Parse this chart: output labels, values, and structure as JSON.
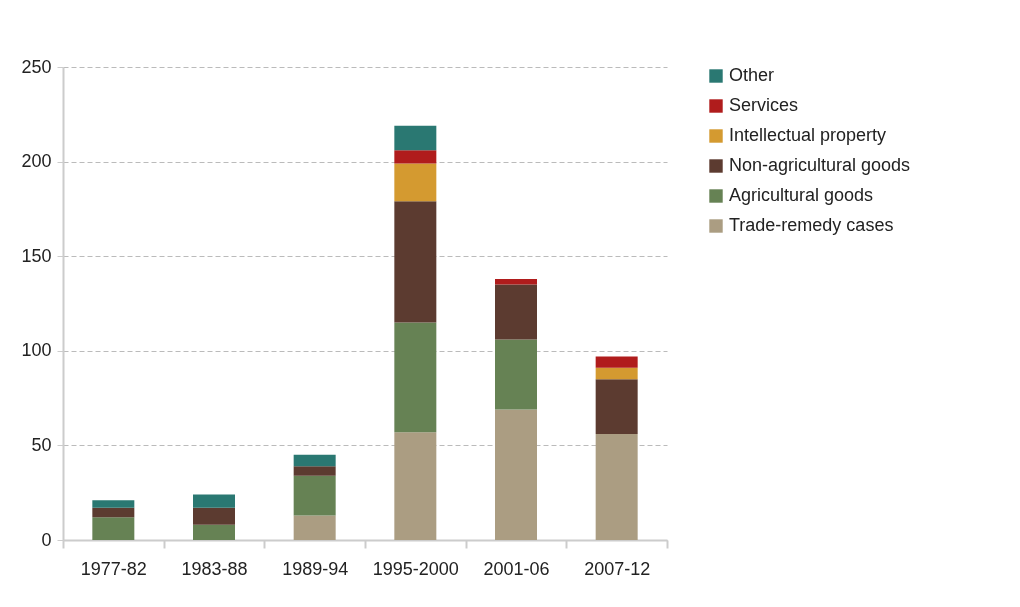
{
  "chart_data": {
    "type": "bar",
    "stacked": true,
    "categories": [
      "1977-82",
      "1983-88",
      "1989-94",
      "1995-2000",
      "2001-06",
      "2007-12"
    ],
    "series": [
      {
        "name": "Trade-remedy cases",
        "color": "#ab9d82",
        "values": [
          0,
          0,
          13,
          57,
          69,
          56
        ]
      },
      {
        "name": "Agricultural goods",
        "color": "#668254",
        "values": [
          12,
          8,
          21,
          58,
          37,
          0
        ]
      },
      {
        "name": "Non-agricultural goods",
        "color": "#5c3b30",
        "values": [
          5,
          9,
          5,
          64,
          29,
          29
        ]
      },
      {
        "name": "Intellectual property",
        "color": "#d49a30",
        "values": [
          0,
          0,
          0,
          20,
          0,
          6
        ]
      },
      {
        "name": "Services",
        "color": "#b01c1c",
        "values": [
          0,
          0,
          0,
          7,
          3,
          6
        ]
      },
      {
        "name": "Other",
        "color": "#2a7872",
        "values": [
          4,
          7,
          6,
          13,
          0,
          0
        ]
      }
    ],
    "ylim": [
      0,
      250
    ],
    "yticks": [
      0,
      50,
      100,
      150,
      200,
      250
    ],
    "grid": "y",
    "legend": "right"
  }
}
